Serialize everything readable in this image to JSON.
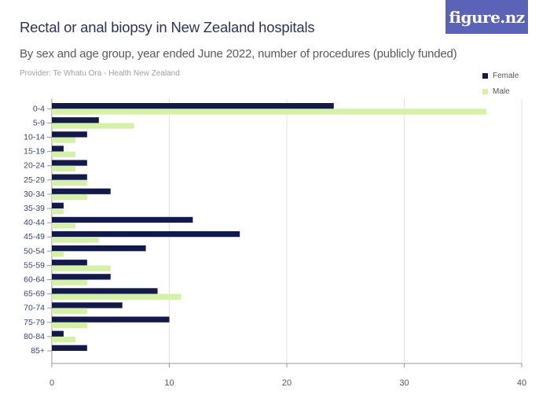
{
  "header": {
    "title": "Rectal or anal biopsy in New Zealand hospitals",
    "subtitle": "By sex and age group, year ended June 2022, number of procedures (publicly funded)",
    "provider": "Provider: Te Whatu Ora - Health New Zealand",
    "logo": "figure.nz"
  },
  "colors": {
    "female": "#131a4a",
    "male": "#d5f0a8",
    "grid": "#e3e3e3",
    "axis": "#999999",
    "tick": "#3a4470"
  },
  "chart_data": {
    "type": "bar",
    "orientation": "horizontal",
    "categories": [
      "0-4",
      "5-9",
      "10-14",
      "15-19",
      "20-24",
      "25-29",
      "30-34",
      "35-39",
      "40-44",
      "45-49",
      "50-54",
      "55-59",
      "60-64",
      "65-69",
      "70-74",
      "75-79",
      "80-84",
      "85+"
    ],
    "series": [
      {
        "name": "Female",
        "values": [
          24,
          4,
          3,
          1,
          3,
          3,
          5,
          1,
          12,
          16,
          8,
          3,
          5,
          9,
          6,
          10,
          1,
          3
        ]
      },
      {
        "name": "Male",
        "values": [
          37,
          7,
          2,
          2,
          2,
          3,
          3,
          1,
          2,
          4,
          1,
          5,
          3,
          11,
          3,
          3,
          2,
          0
        ]
      }
    ],
    "xlim": [
      0,
      40
    ],
    "xticks": [
      0,
      10,
      20,
      30,
      40
    ],
    "xlabel": "",
    "ylabel": "",
    "grid": true,
    "legend_position": "top-right"
  }
}
